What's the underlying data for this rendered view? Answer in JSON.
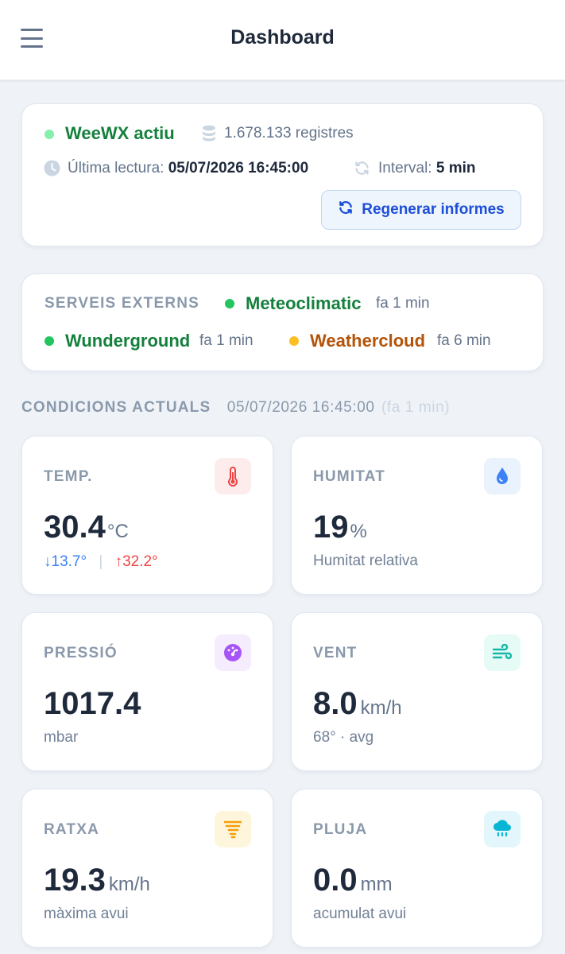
{
  "header": {
    "title": "Dashboard"
  },
  "status": {
    "app_name": "WeeWX actiu",
    "records": "1.678.133 registres",
    "last_read_label": "Última lectura:",
    "last_read_value": "05/07/2026 16:45:00",
    "interval_label": "Interval:",
    "interval_value": "5 min",
    "regen_label": "Regenerar informes"
  },
  "services": {
    "title": "SERVEIS EXTERNS",
    "items": [
      {
        "name": "Meteoclimatic",
        "ago": "fa 1 min",
        "status_color": "#22c55e"
      },
      {
        "name": "Wunderground",
        "ago": "fa 1 min",
        "status_color": "#22c55e"
      },
      {
        "name": "Weathercloud",
        "ago": "fa 6 min",
        "status_color": "#fbbf24"
      }
    ]
  },
  "current": {
    "title": "CONDICIONS ACTUALS",
    "timestamp": "05/07/2026 16:45:00",
    "ago": "(fa 1 min)"
  },
  "metrics": {
    "temp": {
      "label": "TEMP.",
      "value": "30.4",
      "unit": "°C",
      "min": "↓13.7°",
      "sep": "|",
      "max": "↑32.2°",
      "icon": "thermometer-icon"
    },
    "humidity": {
      "label": "HUMITAT",
      "value": "19",
      "unit": "%",
      "sub": "Humitat relativa",
      "icon": "droplet-icon"
    },
    "pressure": {
      "label": "PRESSIÓ",
      "value": "1017.4",
      "unit": "",
      "sub": "mbar",
      "icon": "gauge-icon"
    },
    "wind": {
      "label": "VENT",
      "value": "8.0",
      "unit": "km/h",
      "sub": "68° · avg",
      "icon": "wind-icon"
    },
    "gust": {
      "label": "RATXA",
      "value": "19.3",
      "unit": "km/h",
      "sub": "màxima avui",
      "icon": "tornado-icon"
    },
    "rain": {
      "label": "PLUJA",
      "value": "0.0",
      "unit": "mm",
      "sub": "acumulat avui",
      "icon": "rain-cloud-icon"
    }
  },
  "colors": {
    "accent": "#1d4ed8",
    "ok": "#22c55e",
    "warn": "#fbbf24",
    "ok_text": "#15803d",
    "warn_text": "#b45309"
  }
}
